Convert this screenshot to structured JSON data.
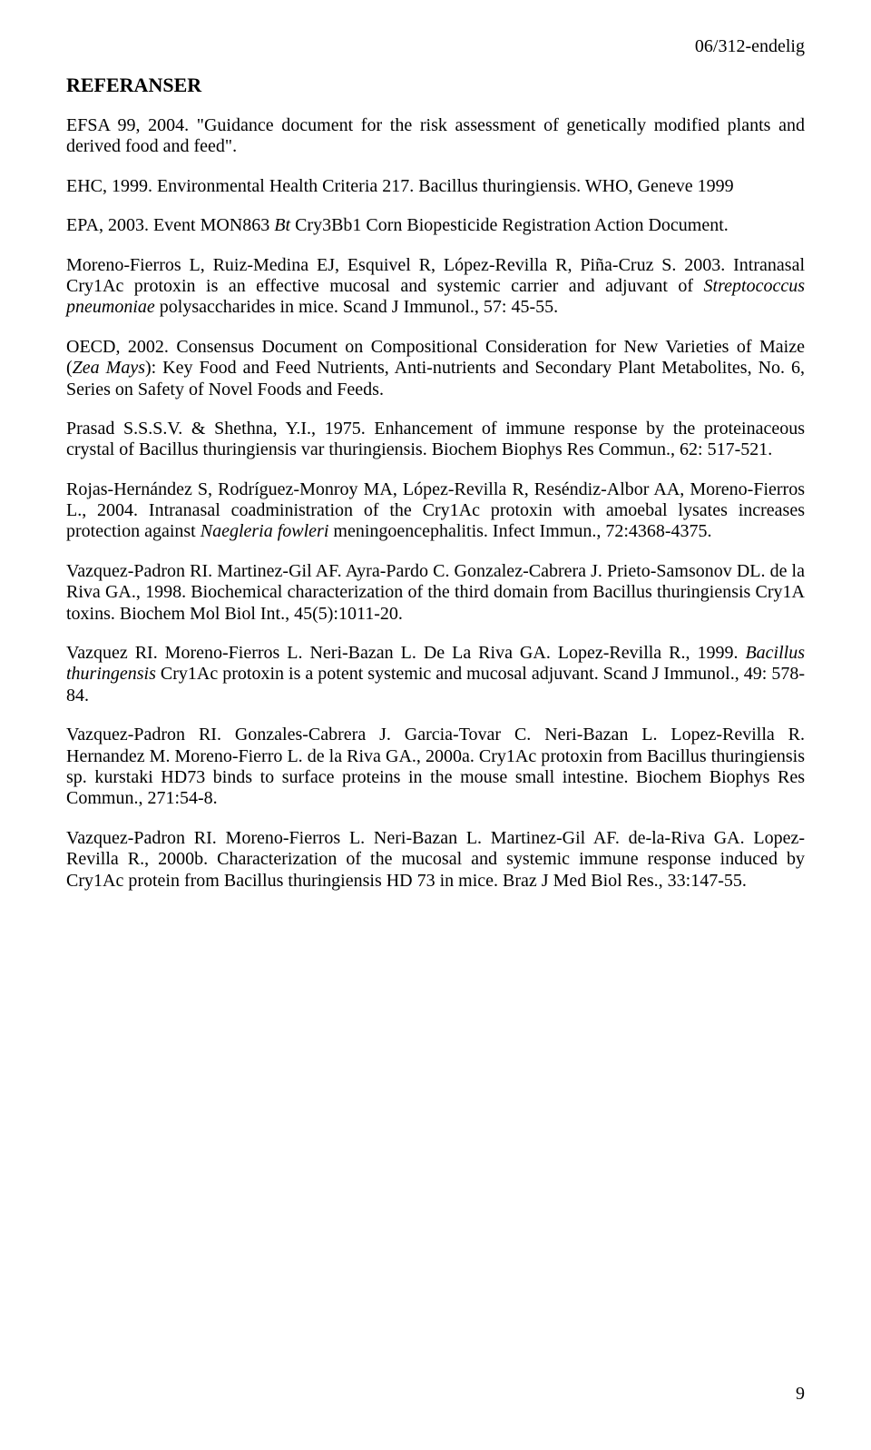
{
  "header": {
    "doc_id": "06/312-endelig"
  },
  "title": "REFERANSER",
  "references": [
    {
      "html": "EFSA 99, 2004. \"Guidance document for the risk assessment of genetically modified plants and derived food and feed\"."
    },
    {
      "html": "EHC, 1999. Environmental Health Criteria 217. Bacillus thuringiensis. WHO, Geneve 1999"
    },
    {
      "html": "EPA, 2003. Event MON863 <i>Bt</i> Cry3Bb1 Corn Biopesticide Registration Action Document."
    },
    {
      "html": "Moreno-Fierros L, Ruiz-Medina EJ, Esquivel R, López-Revilla R, Piña-Cruz S. 2003. Intranasal Cry1Ac protoxin is an effective mucosal and systemic carrier and adjuvant of <i>Streptococcus pneumoniae</i> polysaccharides in mice. Scand J Immunol., 57: 45-55."
    },
    {
      "html": "OECD, 2002. Consensus Document on Compositional Consideration for New Varieties of Maize (<i>Zea Mays</i>): Key Food and Feed Nutrients, Anti-nutrients and Secondary Plant Metabolites, No. 6, Series on Safety of Novel Foods and Feeds."
    },
    {
      "html": "Prasad S.S.S.V. &amp; Shethna, Y.I., 1975. Enhancement of immune response by the proteinaceous crystal of Bacillus thuringiensis var thuringiensis. Biochem Biophys Res Commun., 62: 517-521."
    },
    {
      "html": "Rojas-Hernández S, Rodríguez-Monroy MA, López-Revilla R, Reséndiz-Albor AA, Moreno-Fierros L., 2004. Intranasal coadministration of the Cry1Ac protoxin with amoebal lysates increases protection against <i>Naegleria fowleri</i> meningoencephalitis. Infect Immun., 72:4368-4375."
    },
    {
      "html": "Vazquez-Padron RI. Martinez-Gil AF. Ayra-Pardo C. Gonzalez-Cabrera J. Prieto-Samsonov DL. de la Riva GA., 1998. Biochemical characterization of the third domain from Bacillus thuringiensis Cry1A toxins. Biochem Mol Biol Int., 45(5):1011-20."
    },
    {
      "html": "Vazquez RI. Moreno-Fierros L. Neri-Bazan L. De La Riva GA. Lopez-Revilla R., 1999. <i>Bacillus thuringensis</i> Cry1Ac protoxin is a potent systemic and mucosal adjuvant. Scand J Immunol., 49: 578-84."
    },
    {
      "html": "Vazquez-Padron RI. Gonzales-Cabrera J. Garcia-Tovar C. Neri-Bazan L. Lopez-Revilla R. Hernandez M. Moreno-Fierro L. de la Riva GA., 2000a. Cry1Ac protoxin from Bacillus thuringiensis sp. kurstaki HD73 binds to surface proteins in the mouse small intestine. Biochem Biophys Res Commun., 271:54-8."
    },
    {
      "html": "Vazquez-Padron RI. Moreno-Fierros L. Neri-Bazan L. Martinez-Gil AF. de-la-Riva GA. Lopez-Revilla R., 2000b. Characterization of the mucosal and systemic immune response induced by Cry1Ac protein from Bacillus thuringiensis HD 73 in mice. Braz J Med Biol Res., 33:147-55."
    }
  ],
  "page_number": "9"
}
